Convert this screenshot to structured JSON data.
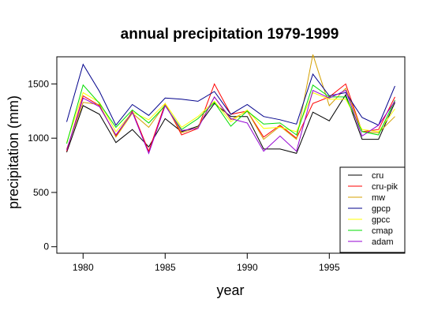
{
  "chart_data": {
    "type": "line",
    "title": "annual precipitation 1979-1999",
    "xlabel": "year",
    "ylabel": "precipitation (mm)",
    "xlim": [
      1978.4,
      1999.6
    ],
    "ylim": [
      -60,
      1750
    ],
    "xticks": [
      1980,
      1985,
      1990,
      1995
    ],
    "yticks": [
      0,
      500,
      1000,
      1500
    ],
    "grid": false,
    "legend_position": "bottom-right",
    "x": [
      1979,
      1980,
      1981,
      1982,
      1983,
      1984,
      1985,
      1986,
      1987,
      1988,
      1989,
      1990,
      1991,
      1992,
      1993,
      1994,
      1995,
      1996,
      1997,
      1998,
      1999
    ],
    "series": [
      {
        "name": "cru",
        "color": "#000000",
        "values": [
          870,
          1300,
          1220,
          960,
          1080,
          920,
          1180,
          1060,
          1110,
          1320,
          1200,
          1200,
          900,
          900,
          860,
          1240,
          1160,
          1400,
          990,
          990,
          1330
        ]
      },
      {
        "name": "cru-pik",
        "color": "#ff0000",
        "values": [
          880,
          1390,
          1300,
          1020,
          1250,
          880,
          1320,
          1030,
          1090,
          1500,
          1220,
          1250,
          1010,
          1120,
          1000,
          1320,
          1380,
          1500,
          1060,
          1080,
          1380
        ]
      },
      {
        "name": "mw",
        "color": "#d4a000",
        "values": [
          900,
          1330,
          1310,
          1010,
          1230,
          1100,
          1310,
          1050,
          1100,
          1380,
          1170,
          1250,
          990,
          1110,
          990,
          1770,
          1300,
          1460,
          1060,
          1050,
          1200
        ]
      },
      {
        "name": "gpcp",
        "color": "#00008b",
        "values": [
          1150,
          1680,
          1430,
          1120,
          1310,
          1210,
          1370,
          1360,
          1340,
          1430,
          1220,
          1310,
          1200,
          1170,
          1130,
          1590,
          1390,
          1420,
          1190,
          1120,
          1480
        ]
      },
      {
        "name": "gpcc",
        "color": "#ffff00",
        "values": [
          960,
          1420,
          1330,
          1060,
          1240,
          1170,
          1320,
          1100,
          1200,
          1340,
          1150,
          1260,
          1090,
          1100,
          1060,
          1420,
          1360,
          1360,
          1080,
          1060,
          1270
        ]
      },
      {
        "name": "cmap",
        "color": "#00dd00",
        "values": [
          950,
          1490,
          1320,
          1100,
          1260,
          1140,
          1300,
          1080,
          1180,
          1330,
          1110,
          1250,
          1130,
          1140,
          1030,
          1490,
          1380,
          1380,
          1060,
          1030,
          1350
        ]
      },
      {
        "name": "adam",
        "color": "#9400d3",
        "values": [
          890,
          1370,
          1290,
          1030,
          1240,
          860,
          1300,
          1070,
          1090,
          1380,
          1180,
          1140,
          880,
          1020,
          880,
          1440,
          1370,
          1440,
          1020,
          1120,
          1340
        ]
      }
    ]
  }
}
